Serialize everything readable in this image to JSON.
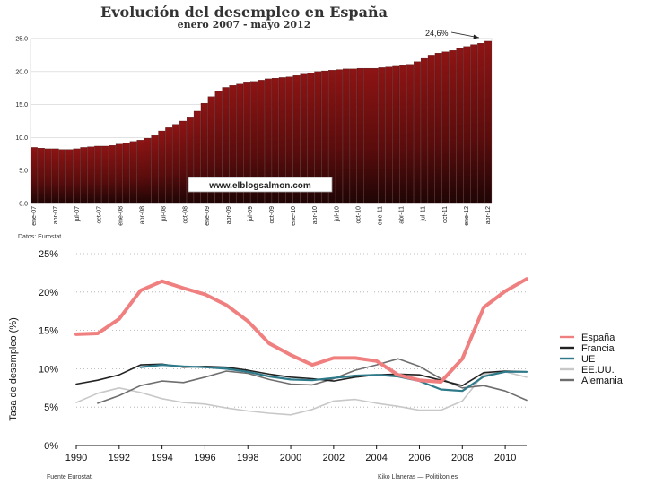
{
  "chart_data": [
    {
      "type": "bar",
      "title": "Evolución del desempleo en España",
      "subtitle": "enero 2007 - mayo 2012",
      "source": "Datos: Eurostat",
      "watermark": "www.elblogsalmon.com",
      "annotation": "24,6%",
      "ylim": [
        0,
        25
      ],
      "yticks": [
        "0.0",
        "5.0",
        "10.0",
        "15.0",
        "20.0",
        "25.0"
      ],
      "xtick_labels": [
        "ene-07",
        "abr-07",
        "jul-07",
        "oct-07",
        "ene-08",
        "abr-08",
        "jul-08",
        "oct-08",
        "ene-09",
        "abr-09",
        "jul-09",
        "oct-09",
        "ene-10",
        "abr-10",
        "jul-10",
        "oct-10",
        "ene-11",
        "abr-11",
        "jul-11",
        "oct-11",
        "ene-12",
        "abr-12"
      ],
      "values": [
        8.5,
        8.4,
        8.3,
        8.3,
        8.2,
        8.2,
        8.3,
        8.5,
        8.6,
        8.7,
        8.7,
        8.8,
        9.0,
        9.2,
        9.4,
        9.6,
        9.9,
        10.3,
        11.0,
        11.5,
        12.0,
        12.5,
        13.0,
        14.0,
        15.2,
        16.2,
        17.0,
        17.6,
        17.9,
        18.1,
        18.3,
        18.5,
        18.7,
        18.9,
        19.0,
        19.1,
        19.2,
        19.4,
        19.6,
        19.8,
        20.0,
        20.1,
        20.2,
        20.3,
        20.4,
        20.4,
        20.5,
        20.5,
        20.5,
        20.6,
        20.7,
        20.8,
        20.9,
        21.1,
        21.5,
        22.0,
        22.5,
        22.8,
        23.0,
        23.2,
        23.5,
        23.8,
        24.1,
        24.3,
        24.6
      ]
    },
    {
      "type": "line",
      "ylabel": "Tasa de desempleo (%)",
      "ylim": [
        0,
        25
      ],
      "yticks": [
        "0%",
        "5%",
        "10%",
        "15%",
        "20%",
        "25%"
      ],
      "xlim": [
        1990,
        2011
      ],
      "xticks": [
        "1990",
        "1992",
        "1994",
        "1996",
        "1998",
        "2000",
        "2002",
        "2004",
        "2006",
        "2008",
        "2010"
      ],
      "source_left": "Fuente Eurostat.",
      "source_right": "Kiko Llaneras — Politikon.es",
      "series": [
        {
          "name": "España",
          "color": "#f08080",
          "x": [
            1990,
            1991,
            1992,
            1993,
            1994,
            1995,
            1996,
            1997,
            1998,
            1999,
            2000,
            2001,
            2002,
            2003,
            2004,
            2005,
            2006,
            2007,
            2008,
            2009,
            2010,
            2011
          ],
          "values": [
            14.5,
            14.6,
            16.5,
            20.2,
            21.4,
            20.5,
            19.7,
            18.3,
            16.2,
            13.3,
            11.8,
            10.5,
            11.4,
            11.4,
            11.0,
            9.2,
            8.5,
            8.3,
            11.3,
            18.0,
            20.1,
            21.7
          ]
        },
        {
          "name": "Francia",
          "color": "#222222",
          "x": [
            1990,
            1991,
            1992,
            1993,
            1994,
            1995,
            1996,
            1997,
            1998,
            1999,
            2000,
            2001,
            2002,
            2003,
            2004,
            2005,
            2006,
            2007,
            2008,
            2009,
            2010,
            2011
          ],
          "values": [
            8.0,
            8.5,
            9.2,
            10.5,
            10.6,
            10.2,
            10.3,
            10.2,
            9.8,
            9.3,
            8.9,
            8.7,
            8.4,
            8.9,
            9.2,
            9.3,
            9.2,
            8.5,
            7.8,
            9.5,
            9.7,
            9.6
          ]
        },
        {
          "name": "UE",
          "color": "#2e7a8a",
          "x": [
            1993,
            1994,
            1995,
            1996,
            1997,
            1998,
            1999,
            2000,
            2001,
            2002,
            2003,
            2004,
            2005,
            2006,
            2007,
            2008,
            2009,
            2010,
            2011
          ],
          "values": [
            10.2,
            10.5,
            10.3,
            10.2,
            10.0,
            9.6,
            9.0,
            8.6,
            8.5,
            8.8,
            9.1,
            9.2,
            9.0,
            8.4,
            7.3,
            7.1,
            9.0,
            9.6,
            9.6
          ]
        },
        {
          "name": "EE.UU.",
          "color": "#c8c8c8",
          "x": [
            1990,
            1991,
            1992,
            1993,
            1994,
            1995,
            1996,
            1997,
            1998,
            1999,
            2000,
            2001,
            2002,
            2003,
            2004,
            2005,
            2006,
            2007,
            2008,
            2009,
            2010,
            2011
          ],
          "values": [
            5.6,
            6.8,
            7.5,
            6.9,
            6.1,
            5.6,
            5.4,
            4.9,
            4.5,
            4.2,
            4.0,
            4.7,
            5.8,
            6.0,
            5.5,
            5.1,
            4.6,
            4.6,
            5.8,
            9.3,
            9.6,
            8.9
          ]
        },
        {
          "name": "Alemania",
          "color": "#6e6e6e",
          "x": [
            1991,
            1992,
            1993,
            1994,
            1995,
            1996,
            1997,
            1998,
            1999,
            2000,
            2001,
            2002,
            2003,
            2004,
            2005,
            2006,
            2007,
            2008,
            2009,
            2010,
            2011
          ],
          "values": [
            5.5,
            6.5,
            7.8,
            8.4,
            8.2,
            8.9,
            9.7,
            9.4,
            8.6,
            8.0,
            7.9,
            8.7,
            9.8,
            10.5,
            11.3,
            10.3,
            8.7,
            7.5,
            7.8,
            7.1,
            5.9
          ]
        }
      ]
    }
  ]
}
